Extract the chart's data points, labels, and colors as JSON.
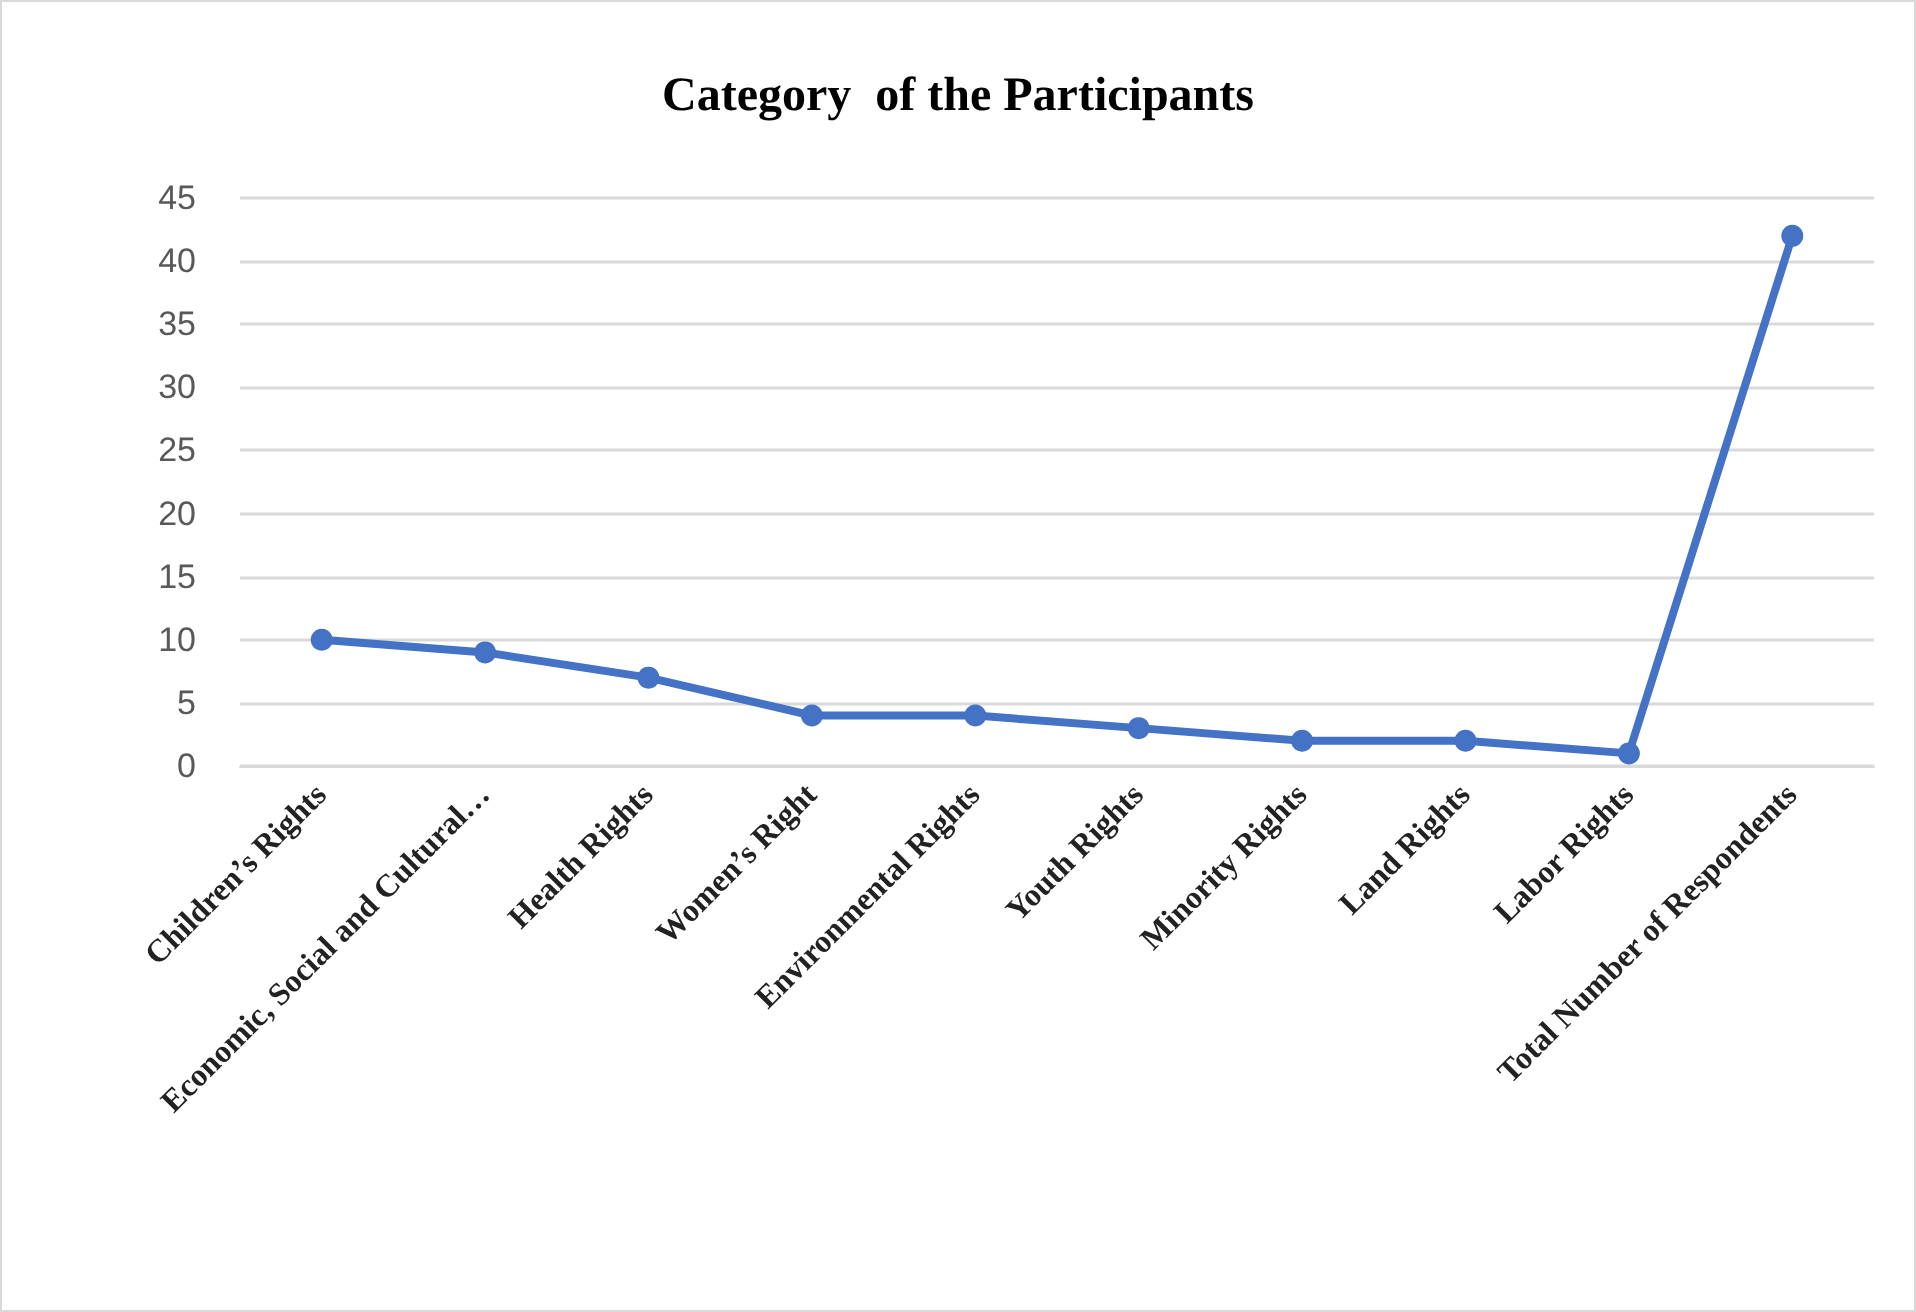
{
  "chart_data": {
    "type": "line",
    "title": "Category  of the Participants",
    "categories": [
      "Children’s Rights",
      "Economic, Social and Cultural…",
      "Health Rights",
      "Women’s Right",
      "Environmental Rights",
      "Youth Rights",
      "Minority Rights",
      "Land Rights",
      "Labor Rights",
      "Total Number of Respondents"
    ],
    "series": [
      {
        "color": "#4472c4",
        "values": [
          10,
          9,
          7,
          4,
          4,
          3,
          2,
          2,
          1,
          42
        ]
      }
    ],
    "ylim": [
      0,
      45
    ],
    "yticks": [
      0,
      5,
      10,
      15,
      20,
      25,
      30,
      35,
      40,
      45
    ],
    "grid": "y",
    "marker": "circle",
    "line_style": "solid"
  }
}
